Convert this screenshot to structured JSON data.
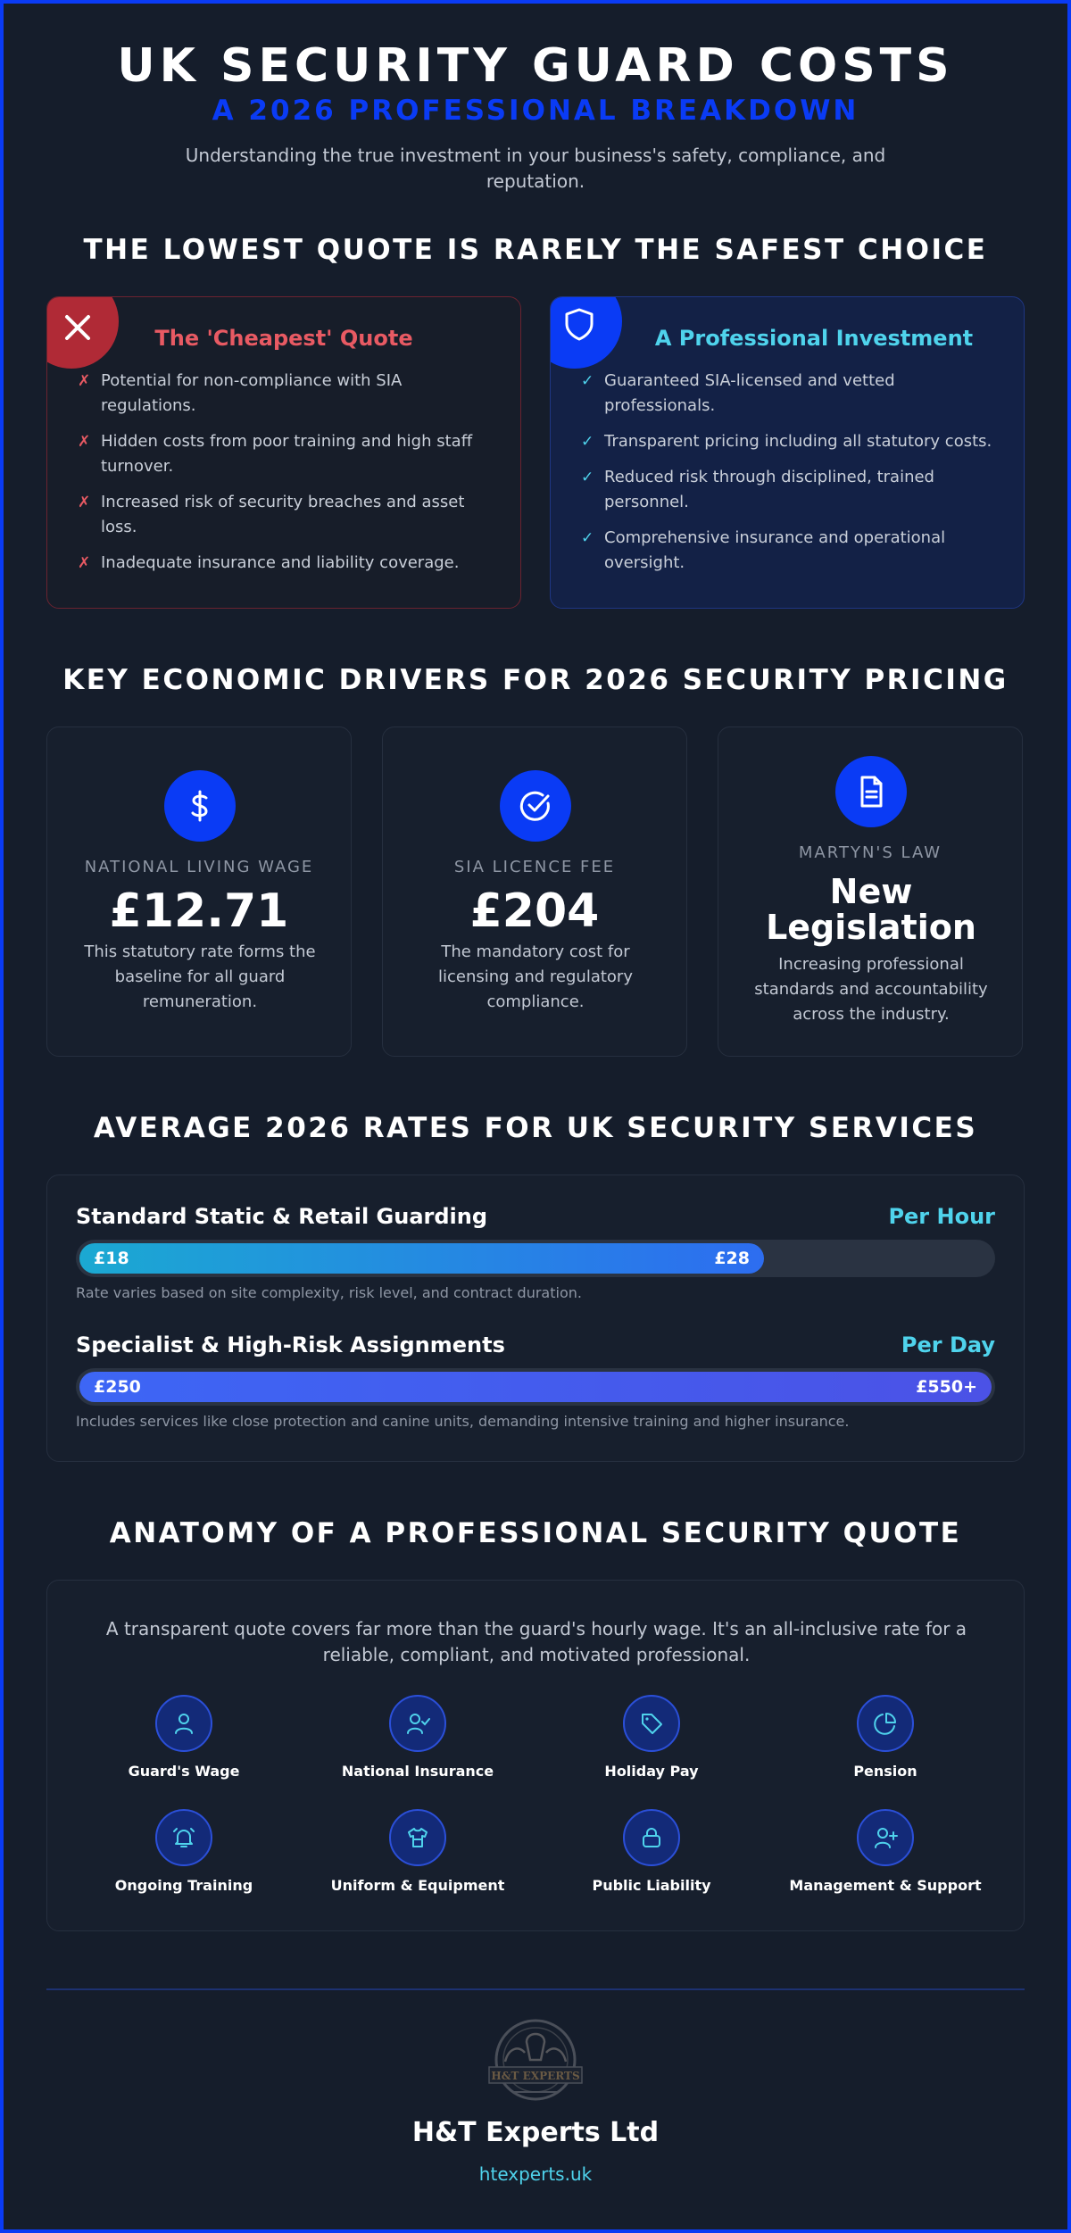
{
  "header": {
    "title": "UK SECURITY GUARD COSTS",
    "subtitle": "A 2026 PROFESSIONAL BREAKDOWN",
    "description": "Understanding the true investment in your business's safety, compliance, and reputation."
  },
  "comparison": {
    "section_title": "THE LOWEST QUOTE IS RARELY THE SAFEST CHOICE",
    "cheap": {
      "icon": "close-icon",
      "heading": "The 'Cheapest' Quote",
      "mark": "✗",
      "items": [
        "Potential for non-compliance with SIA regulations.",
        "Hidden costs from poor training and high staff turnover.",
        "Increased risk of security breaches and asset loss.",
        "Inadequate insurance and liability coverage."
      ]
    },
    "professional": {
      "icon": "shield-icon",
      "heading": "A Professional Investment",
      "mark": "✓",
      "items": [
        "Guaranteed SIA-licensed and vetted professionals.",
        "Transparent pricing including all statutory costs.",
        "Reduced risk through disciplined, trained personnel.",
        "Comprehensive insurance and operational oversight."
      ]
    }
  },
  "drivers": {
    "section_title": "KEY ECONOMIC DRIVERS FOR 2026 SECURITY PRICING",
    "items": [
      {
        "icon": "dollar-icon",
        "label": "NATIONAL LIVING WAGE",
        "value": "£12.71",
        "description": "This statutory rate forms the baseline for all guard remuneration."
      },
      {
        "icon": "check-circle-icon",
        "label": "SIA LICENCE FEE",
        "value": "£204",
        "description": "The mandatory cost for licensing and regulatory compliance."
      },
      {
        "icon": "document-icon",
        "label": "MARTYN'S LAW",
        "value": "New Legislation",
        "description": "Increasing professional standards and accountability across the industry."
      }
    ]
  },
  "rates": {
    "section_title": "AVERAGE 2026 RATES FOR UK SECURITY SERVICES",
    "items": [
      {
        "title": "Standard Static & Retail Guarding",
        "unit": "Per Hour",
        "low": "£18",
        "high": "£28",
        "fill_fraction": 0.75,
        "note": "Rate varies based on site complexity, risk level, and contract duration."
      },
      {
        "title": "Specialist & High-Risk Assignments",
        "unit": "Per Day",
        "low": "£250",
        "high": "£550+",
        "fill_fraction": 1.0,
        "note": "Includes services like close protection and canine units, demanding intensive training and higher insurance."
      }
    ]
  },
  "anatomy": {
    "section_title": "ANATOMY OF A PROFESSIONAL SECURITY QUOTE",
    "intro": "A transparent quote covers far more than the guard's hourly wage. It's an all-inclusive rate for a reliable, compliant, and motivated professional.",
    "items": [
      {
        "icon": "user-icon",
        "label": "Guard's Wage"
      },
      {
        "icon": "user-check-icon",
        "label": "National Insurance"
      },
      {
        "icon": "tag-icon",
        "label": "Holiday Pay"
      },
      {
        "icon": "pie-chart-icon",
        "label": "Pension"
      },
      {
        "icon": "bell-icon",
        "label": "Ongoing Training"
      },
      {
        "icon": "shirt-icon",
        "label": "Uniform & Equipment"
      },
      {
        "icon": "lock-icon",
        "label": "Public Liability"
      },
      {
        "icon": "user-plus-icon",
        "label": "Management & Support"
      }
    ]
  },
  "footer": {
    "logo_text": "H&T EXPERTS",
    "company": "H&T Experts Ltd",
    "website": "htexperts.uk"
  },
  "colors": {
    "background": "#151d2b",
    "accent_blue": "#0a3bf5",
    "cyan": "#4fd3ec",
    "red": "#e85a63"
  }
}
